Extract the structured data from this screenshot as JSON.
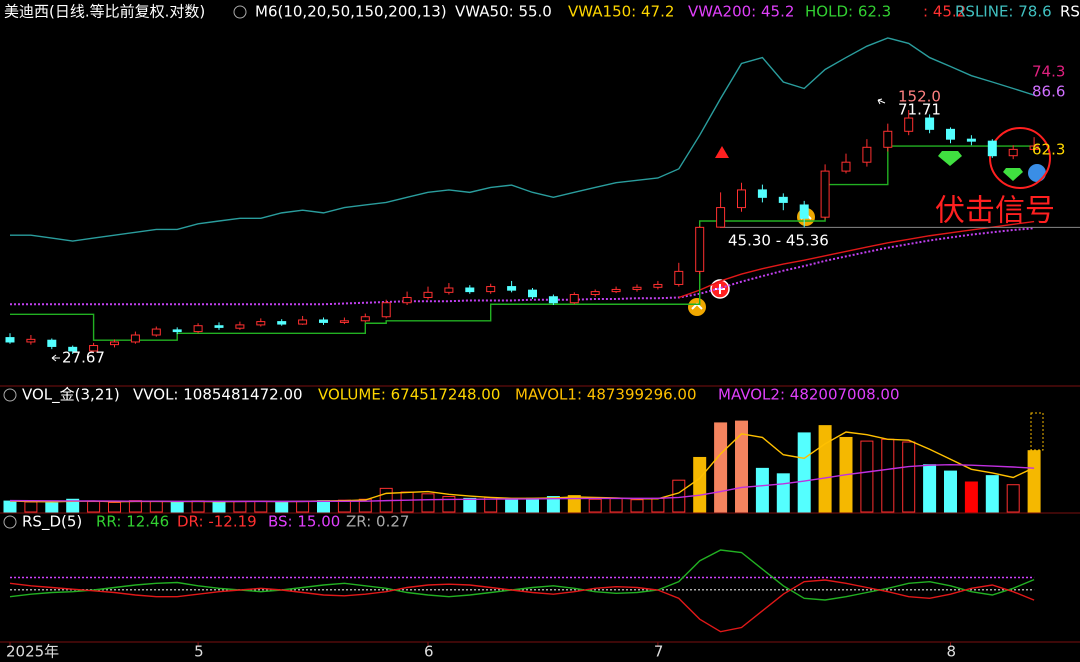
{
  "chart_data": [
    {
      "type": "candlestick",
      "header": [
        {
          "text": "美迪西(日线.等比前复权.对数)",
          "color": "#ffffff"
        },
        {
          "text": "M6(10,20,50,150,200,13)",
          "color": "#ffffff"
        },
        {
          "text": "VWA50: 55.0",
          "color": "#ffffff"
        },
        {
          "text": "VWA150: 47.2",
          "color": "#ffd700"
        },
        {
          "text": "VWA200: 45.2",
          "color": "#e040fb"
        },
        {
          "text": "HOLD: 62.3",
          "color": "#32d032"
        },
        {
          "text": ": 45.2",
          "color": "#ff3030"
        },
        {
          "text": "RSLINE: 78.6",
          "color": "#40c0c0"
        },
        {
          "text": "RS",
          "color": "#ffffff"
        }
      ],
      "log_scale": true,
      "ylim": [
        25,
        98
      ],
      "up_color": "#ff3030",
      "down_color": "#54ffff",
      "open": [
        29.5,
        29.0,
        29.2,
        28.4,
        28.0,
        28.7,
        29.0,
        29.8,
        30.4,
        30.2,
        30.9,
        30.6,
        31.0,
        31.4,
        31.1,
        31.6,
        31.3,
        31.5,
        32.0,
        33.8,
        34.5,
        35.2,
        35.8,
        35.3,
        36.0,
        35.5,
        34.6,
        33.8,
        34.9,
        35.3,
        35.6,
        35.9,
        36.3,
        38.2,
        45.4,
        49.0,
        52.5,
        51.0,
        49.5,
        47.2,
        56.5,
        58.5,
        62.0,
        66.0,
        69.5,
        66.5,
        64.0,
        63.5,
        60.0,
        61.5
      ],
      "high": [
        30.0,
        29.8,
        29.4,
        28.6,
        28.9,
        29.3,
        30.2,
        30.8,
        30.7,
        31.2,
        31.3,
        31.4,
        31.8,
        31.7,
        32.1,
        31.9,
        31.9,
        32.4,
        34.2,
        35.3,
        36.0,
        36.5,
        36.2,
        36.4,
        36.8,
        35.8,
        34.9,
        35.2,
        35.6,
        36.0,
        36.3,
        36.8,
        39.5,
        45.6,
        52.0,
        54.0,
        53.6,
        51.8,
        50.3,
        58.0,
        60.5,
        64.0,
        68.0,
        71.71,
        70.5,
        67.0,
        65.0,
        64.0,
        62.5,
        64.5
      ],
      "low": [
        28.8,
        28.7,
        28.2,
        27.67,
        27.9,
        28.4,
        28.8,
        29.6,
        29.9,
        30.0,
        30.4,
        30.4,
        30.8,
        30.9,
        31.0,
        31.0,
        31.1,
        31.3,
        31.8,
        33.5,
        34.2,
        34.9,
        35.0,
        35.0,
        35.2,
        34.3,
        33.5,
        33.6,
        34.6,
        35.1,
        35.3,
        35.6,
        36.0,
        37.8,
        45.3,
        48.2,
        50.0,
        48.5,
        45.36,
        46.8,
        56.0,
        57.5,
        61.0,
        65.0,
        65.5,
        63.0,
        62.5,
        59.5,
        59.2,
        60.8
      ],
      "close": [
        29.0,
        29.3,
        28.5,
        28.0,
        28.6,
        29.0,
        29.8,
        30.5,
        30.2,
        30.9,
        30.7,
        31.0,
        31.4,
        31.1,
        31.6,
        31.3,
        31.5,
        32.0,
        33.8,
        34.5,
        35.2,
        35.8,
        35.3,
        36.0,
        35.5,
        34.6,
        33.8,
        34.9,
        35.3,
        35.6,
        35.9,
        36.3,
        38.2,
        45.36,
        49.0,
        52.5,
        51.0,
        50.0,
        47.0,
        56.5,
        58.5,
        62.0,
        66.0,
        69.5,
        66.5,
        64.0,
        63.5,
        60.0,
        61.5,
        62.3
      ],
      "series": [
        {
          "color": "#2a9d9d",
          "style": "solid",
          "values": [
            44,
            44,
            43.5,
            43,
            43.5,
            44,
            44.5,
            45,
            45,
            46,
            46.5,
            47,
            47,
            48,
            48.5,
            48,
            49,
            49.5,
            50,
            51,
            52,
            52.5,
            52,
            53,
            53.5,
            52,
            51,
            52,
            53,
            54,
            54.5,
            55,
            57,
            65,
            75,
            86,
            88,
            80,
            78,
            84,
            88,
            92,
            95,
            93,
            88,
            85,
            82,
            80,
            78,
            76
          ]
        },
        {
          "color": "#c040f0",
          "style": "dotted",
          "values": [
            33.6,
            33.6,
            33.6,
            33.6,
            33.6,
            33.6,
            33.6,
            33.6,
            33.6,
            33.6,
            33.6,
            33.6,
            33.6,
            33.6,
            33.6,
            33.6,
            33.7,
            33.8,
            33.9,
            34,
            34,
            34,
            34.1,
            34.1,
            34.1,
            34.2,
            34.2,
            34.2,
            34.3,
            34.3,
            34.4,
            34.4,
            34.5,
            35.0,
            35.8,
            36.7,
            37.5,
            38.3,
            39.0,
            39.8,
            40.5,
            41.2,
            41.9,
            42.5,
            43.1,
            43.6,
            44.1,
            44.5,
            44.9,
            45.2
          ]
        },
        {
          "color": "#e01818",
          "style": "solid",
          "values": [
            null,
            null,
            null,
            null,
            null,
            null,
            null,
            null,
            null,
            null,
            null,
            null,
            null,
            null,
            null,
            null,
            null,
            null,
            null,
            null,
            null,
            null,
            null,
            null,
            null,
            null,
            null,
            null,
            null,
            null,
            null,
            null,
            34.5,
            35.5,
            36.8,
            37.8,
            38.6,
            39.3,
            39.9,
            40.6,
            41.3,
            42,
            42.7,
            43.3,
            43.9,
            44.4,
            44.9,
            45.4,
            45.9,
            46.4
          ]
        },
        {
          "color": "#22b022",
          "style": "step",
          "values": [
            32.3,
            32.3,
            32.3,
            32.3,
            29.2,
            29.2,
            29.2,
            29.2,
            30,
            30,
            30,
            30,
            30,
            30,
            30,
            30,
            30,
            31.2,
            31.5,
            31.5,
            31.5,
            31.5,
            31.5,
            33.6,
            33.6,
            33.6,
            33.6,
            33.6,
            33.6,
            33.6,
            33.6,
            33.6,
            33.6,
            46.5,
            46.5,
            46.5,
            46.5,
            46.5,
            46.5,
            53.6,
            53.6,
            53.6,
            62.3,
            62.3,
            62.3,
            62.3,
            62.3,
            62.3,
            62.3,
            62.3
          ]
        }
      ],
      "annotations": [
        {
          "text": "27.67",
          "color": "#ffffff"
        },
        {
          "text": "152.0",
          "color": "#ff8080"
        },
        {
          "text": "71.71",
          "color": "#ffffff"
        },
        {
          "text": "45.30 - 45.36",
          "color": "#ffffff"
        },
        {
          "text": "74.3",
          "color": "#e0207f"
        },
        {
          "text": "86.6",
          "color": "#d070ff"
        },
        {
          "text": "62.3",
          "color": "#ffd700"
        },
        {
          "text": "伏击信号",
          "color": "#ff2020"
        }
      ]
    },
    {
      "type": "bar",
      "header": [
        {
          "text": "VOL_金(3,21)",
          "color": "#ffffff"
        },
        {
          "text": "VVOL: 1085481472.00",
          "color": "#ffffff"
        },
        {
          "text": "VOLUME: 674517248.00",
          "color": "#ffd700"
        },
        {
          "text": "MAVOL1: 487399296.00",
          "color": "#ffc000"
        },
        {
          "text": "MAVOL2: 482007008.00",
          "color": "#e040fb"
        }
      ],
      "ylim": [
        0,
        1100000000
      ],
      "values": [
        120000000,
        110000000,
        100000000,
        140000000,
        115000000,
        105000000,
        125000000,
        118000000,
        110000000,
        122000000,
        108000000,
        115000000,
        120000000,
        112000000,
        118000000,
        125000000,
        130000000,
        140000000,
        260000000,
        220000000,
        200000000,
        170000000,
        150000000,
        160000000,
        140000000,
        150000000,
        170000000,
        180000000,
        140000000,
        150000000,
        135000000,
        150000000,
        350000000,
        600000000,
        980000000,
        1000000000,
        480000000,
        420000000,
        870000000,
        950000000,
        820000000,
        780000000,
        800000000,
        770000000,
        520000000,
        450000000,
        330000000,
        400000000,
        300000000,
        674517248
      ],
      "highlights": [
        {
          "index": 27,
          "color": "#f5b800"
        },
        {
          "index": 33,
          "color": "#f5b800"
        },
        {
          "index": 34,
          "color": "#f4845f"
        },
        {
          "index": 35,
          "color": "#f4845f"
        },
        {
          "index": 39,
          "color": "#f5b800"
        },
        {
          "index": 40,
          "color": "#f5b800"
        },
        {
          "index": 46,
          "color": "#ff0000"
        },
        {
          "index": 49,
          "color": "#f5b800"
        }
      ],
      "series": [
        {
          "color": "#ffc000",
          "values": [
            120000000,
            115000000,
            112000000,
            118000000,
            120000000,
            113000000,
            116000000,
            117000000,
            115000000,
            117000000,
            114000000,
            116000000,
            118000000,
            115000000,
            117000000,
            121000000,
            124000000,
            132000000,
            205000000,
            215000000,
            225000000,
            195000000,
            175000000,
            160000000,
            150000000,
            150000000,
            155000000,
            165000000,
            160000000,
            155000000,
            145000000,
            145000000,
            210000000,
            370000000,
            640000000,
            860000000,
            820000000,
            630000000,
            590000000,
            750000000,
            880000000,
            850000000,
            800000000,
            790000000,
            690000000,
            580000000,
            470000000,
            430000000,
            380000000,
            487399296
          ]
        },
        {
          "color": "#c030e0",
          "values": [
            125000000,
            124000000,
            123000000,
            122000000,
            121000000,
            120000000,
            119000000,
            119000000,
            118000000,
            118000000,
            118000000,
            117000000,
            117000000,
            117000000,
            117000000,
            118000000,
            118000000,
            119000000,
            125000000,
            130000000,
            135000000,
            138000000,
            140000000,
            142000000,
            143000000,
            144000000,
            146000000,
            148000000,
            149000000,
            150000000,
            150000000,
            151000000,
            160000000,
            185000000,
            225000000,
            270000000,
            290000000,
            310000000,
            340000000,
            375000000,
            410000000,
            440000000,
            470000000,
            500000000,
            515000000,
            520000000,
            515000000,
            505000000,
            495000000,
            482007008
          ]
        }
      ]
    },
    {
      "type": "line",
      "header": [
        {
          "text": "RS_D(5)",
          "color": "#ffffff"
        },
        {
          "text": "RR: 12.46",
          "color": "#32d032"
        },
        {
          "text": "DR: -12.19",
          "color": "#ff3030"
        },
        {
          "text": "BS: 15.00",
          "color": "#e040fb"
        },
        {
          "text": "ZR: 0.27",
          "color": "#aaaaaa"
        }
      ],
      "ylim": [
        -60,
        60
      ],
      "series": [
        {
          "color": "#22b022",
          "values": [
            -8,
            -5,
            -3,
            -2,
            0,
            3,
            6,
            8,
            9,
            5,
            2,
            0,
            -2,
            0,
            3,
            6,
            8,
            5,
            2,
            -3,
            -6,
            -8,
            -6,
            -3,
            0,
            3,
            5,
            2,
            -2,
            -4,
            -3,
            0,
            10,
            35,
            48,
            45,
            25,
            5,
            -10,
            -12,
            -8,
            -3,
            2,
            8,
            10,
            5,
            -2,
            -6,
            2,
            12.46
          ]
        },
        {
          "color": "#e01818",
          "values": [
            8,
            5,
            3,
            1,
            -1,
            -3,
            -6,
            -8,
            -8,
            -5,
            -2,
            0,
            2,
            0,
            -3,
            -6,
            -7,
            -5,
            -2,
            3,
            6,
            7,
            6,
            3,
            0,
            -3,
            -5,
            -2,
            2,
            4,
            3,
            0,
            -10,
            -35,
            -50,
            -45,
            -25,
            -5,
            10,
            12,
            8,
            3,
            -2,
            -8,
            -10,
            -5,
            2,
            6,
            -2,
            -12.19
          ]
        }
      ],
      "ref_lines": [
        {
          "value": 15,
          "color": "#d040ff"
        },
        {
          "value": 0.27,
          "color": "#aaaaaa"
        }
      ],
      "xticks": [
        {
          "value": 0,
          "label": "2025年"
        },
        {
          "value": 9,
          "label": "5"
        },
        {
          "value": 20,
          "label": "6"
        },
        {
          "value": 31,
          "label": "7"
        },
        {
          "value": 45,
          "label": "8"
        }
      ]
    }
  ]
}
